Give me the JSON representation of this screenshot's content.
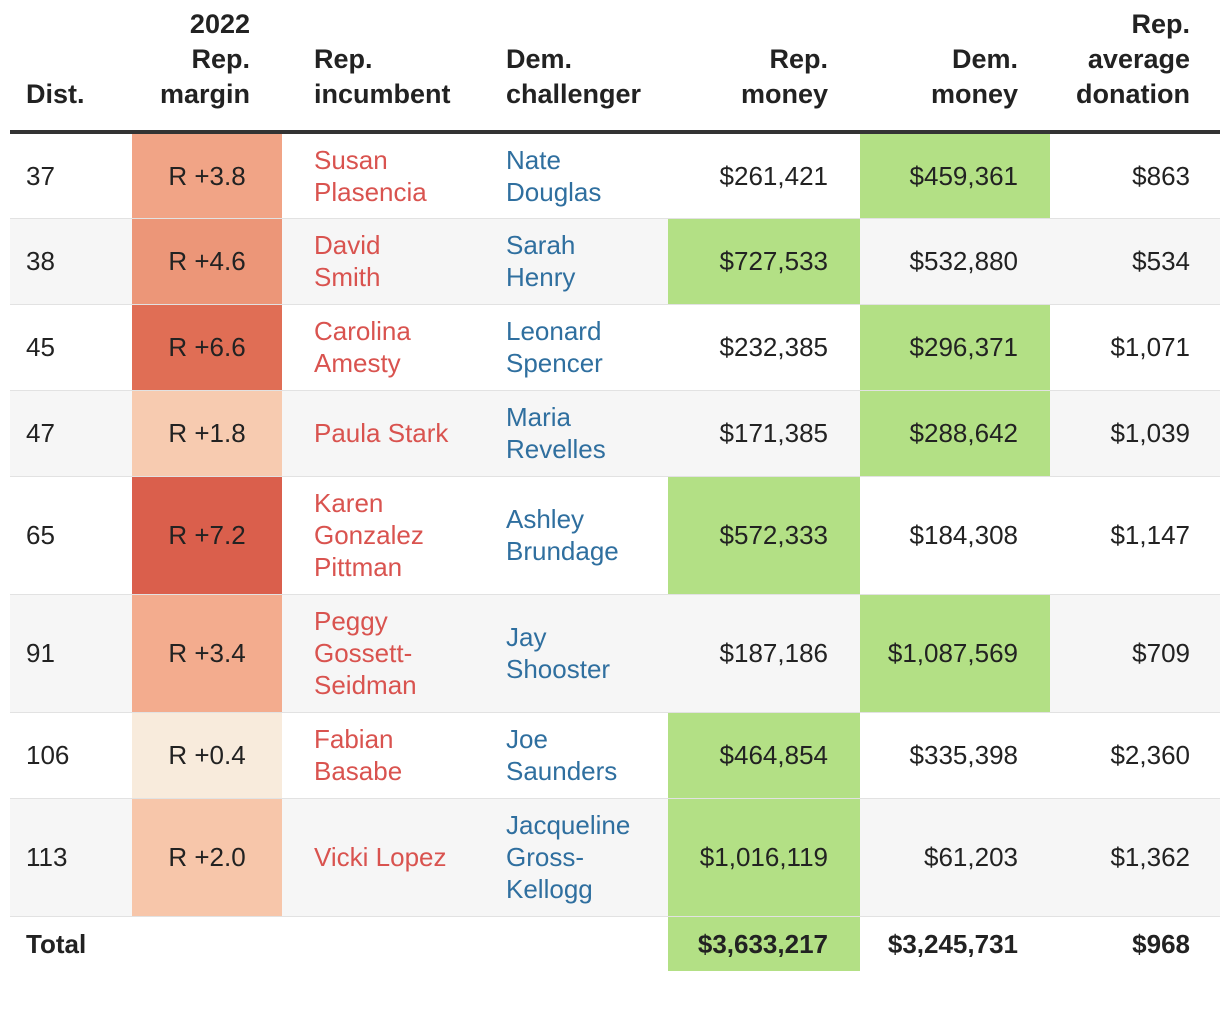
{
  "chart_data": {
    "type": "table",
    "columns": [
      "Dist.",
      "2022 Rep. margin",
      "Rep. incumbent",
      "Dem. challenger",
      "Rep. money",
      "Dem. money",
      "Rep. average donation"
    ],
    "header_lines": [
      [
        "Dist."
      ],
      [
        "2022",
        "Rep.",
        "margin"
      ],
      [
        "Rep.",
        "incumbent"
      ],
      [
        "Dem.",
        "challenger"
      ],
      [
        "Rep.",
        "money"
      ],
      [
        "Dem.",
        "money"
      ],
      [
        "Rep.",
        "average",
        "donation"
      ]
    ],
    "rows": [
      {
        "dist": "37",
        "margin": "R +3.8",
        "margin_value": 3.8,
        "rep": [
          "Susan",
          "Plasencia"
        ],
        "dem": [
          "Nate",
          "Douglas"
        ],
        "rep_money": "$261,421",
        "dem_money": "$459,361",
        "avg": "$863",
        "leader": "dem"
      },
      {
        "dist": "38",
        "margin": "R +4.6",
        "margin_value": 4.6,
        "rep": [
          "David",
          "Smith"
        ],
        "dem": [
          "Sarah",
          "Henry"
        ],
        "rep_money": "$727,533",
        "dem_money": "$532,880",
        "avg": "$534",
        "leader": "rep"
      },
      {
        "dist": "45",
        "margin": "R +6.6",
        "margin_value": 6.6,
        "rep": [
          "Carolina",
          "Amesty"
        ],
        "dem": [
          "Leonard",
          "Spencer"
        ],
        "rep_money": "$232,385",
        "dem_money": "$296,371",
        "avg": "$1,071",
        "leader": "dem"
      },
      {
        "dist": "47",
        "margin": "R +1.8",
        "margin_value": 1.8,
        "rep": [
          "Paula Stark"
        ],
        "dem": [
          "Maria",
          "Revelles"
        ],
        "rep_money": "$171,385",
        "dem_money": "$288,642",
        "avg": "$1,039",
        "leader": "dem"
      },
      {
        "dist": "65",
        "margin": "R +7.2",
        "margin_value": 7.2,
        "rep": [
          "Karen",
          "Gonzalez",
          "Pittman"
        ],
        "dem": [
          "Ashley",
          "Brundage"
        ],
        "rep_money": "$572,333",
        "dem_money": "$184,308",
        "avg": "$1,147",
        "leader": "rep"
      },
      {
        "dist": "91",
        "margin": "R +3.4",
        "margin_value": 3.4,
        "rep": [
          "Peggy",
          "Gossett-",
          "Seidman"
        ],
        "dem": [
          "Jay",
          "Shooster"
        ],
        "rep_money": "$187,186",
        "dem_money": "$1,087,569",
        "avg": "$709",
        "leader": "dem"
      },
      {
        "dist": "106",
        "margin": "R +0.4",
        "margin_value": 0.4,
        "rep": [
          "Fabian",
          "Basabe"
        ],
        "dem": [
          "Joe",
          "Saunders"
        ],
        "rep_money": "$464,854",
        "dem_money": "$335,398",
        "avg": "$2,360",
        "leader": "rep"
      },
      {
        "dist": "113",
        "margin": "R +2.0",
        "margin_value": 2.0,
        "rep": [
          "Vicki Lopez"
        ],
        "dem": [
          "Jacqueline",
          "Gross-",
          "Kellogg"
        ],
        "rep_money": "$1,016,119",
        "dem_money": "$61,203",
        "avg": "$1,362",
        "leader": "rep"
      }
    ],
    "total": {
      "label": "Total",
      "rep_money": "$3,633,217",
      "dem_money": "$3,245,731",
      "avg": "$968",
      "leader": "rep"
    }
  },
  "colors": {
    "rep_name": "#d9534f",
    "dem_name": "#2f6f9f",
    "money_leader": "#b3e085",
    "margin_scale": [
      "#f8ebdc",
      "#f7c2a6",
      "#f2a587",
      "#ec9577",
      "#e06e55",
      "#da5f4c"
    ]
  }
}
